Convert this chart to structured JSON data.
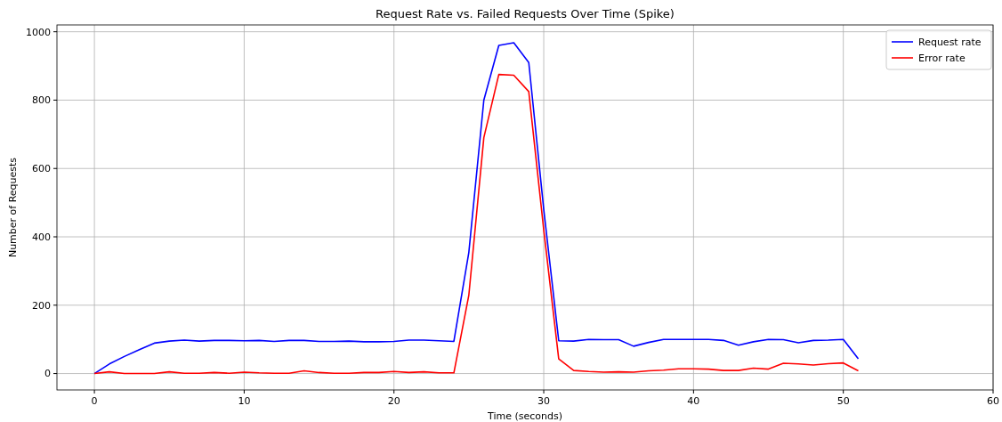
{
  "chart_data": {
    "type": "line",
    "title": "Request Rate vs. Failed Requests Over Time (Spike)",
    "xlabel": "Time (seconds)",
    "ylabel": "Number of Requests",
    "x": [
      0,
      1,
      2,
      3,
      4,
      5,
      6,
      7,
      8,
      9,
      10,
      11,
      12,
      13,
      14,
      15,
      16,
      17,
      18,
      19,
      20,
      21,
      22,
      23,
      24,
      25,
      26,
      27,
      28,
      29,
      30,
      31,
      32,
      33,
      34,
      35,
      36,
      37,
      38,
      39,
      40,
      41,
      42,
      43,
      44,
      45,
      46,
      47,
      48,
      49,
      50,
      51
    ],
    "series": [
      {
        "name": "Request rate",
        "color": "#0000ff",
        "values": [
          0,
          28,
          50,
          70,
          89,
          95,
          98,
          95,
          97,
          97,
          96,
          97,
          94,
          97,
          97,
          94,
          94,
          95,
          93,
          93,
          94,
          98,
          98,
          96,
          94,
          355,
          800,
          960,
          968,
          910,
          480,
          96,
          95,
          100,
          99,
          99,
          80,
          91,
          100,
          100,
          100,
          100,
          97,
          83,
          93,
          100,
          99,
          90,
          97,
          98,
          100,
          43
        ]
      },
      {
        "name": "Error rate",
        "color": "#ff0000",
        "values": [
          0,
          5,
          0,
          0,
          0,
          5,
          1,
          1,
          3,
          1,
          4,
          2,
          1,
          1,
          8,
          3,
          1,
          1,
          3,
          3,
          6,
          3,
          5,
          2,
          2,
          230,
          690,
          875,
          873,
          825,
          420,
          43,
          9,
          6,
          4,
          5,
          4,
          8,
          10,
          14,
          14,
          13,
          9,
          9,
          16,
          13,
          30,
          28,
          25,
          29,
          31,
          8
        ]
      }
    ],
    "xlim": [
      -2.5,
      60
    ],
    "xticks": [
      0,
      10,
      20,
      30,
      40,
      50,
      60
    ],
    "ylim": [
      -48,
      1020
    ],
    "yticks": [
      0,
      200,
      400,
      600,
      800,
      1000
    ],
    "grid": true,
    "legend": "top right",
    "marker": "none",
    "line_style": "solid"
  }
}
